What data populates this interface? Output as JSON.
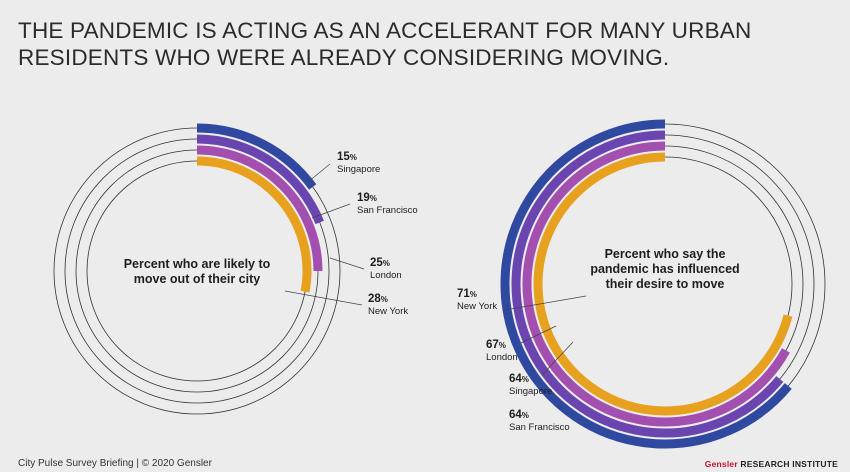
{
  "title": {
    "line1": "THE PANDEMIC IS ACTING AS AN ACCELERANT FOR MANY URBAN",
    "line2": "RESIDENTS WHO WERE ALREADY CONSIDERING MOVING."
  },
  "footer": {
    "left": "City Pulse Survey Briefing  |  © 2020 Gensler",
    "brand": "Gensler",
    "institute": "RESEARCH INSTITUTE"
  },
  "colors": {
    "blue": "#2f49a0",
    "purple_dark": "#6a45b0",
    "purple_light": "#a24fb0",
    "orange": "#e8a11e",
    "track": "#333333"
  },
  "chart_data": [
    {
      "type": "radial-bar",
      "center_label": [
        "Percent who are likely to",
        "move out of their city"
      ],
      "series": [
        {
          "name": "Singapore",
          "value": 15,
          "label": "15%",
          "color": "#2f49a0"
        },
        {
          "name": "San Francisco",
          "value": 19,
          "label": "19%",
          "color": "#6a45b0"
        },
        {
          "name": "London",
          "value": 25,
          "label": "25%",
          "color": "#a24fb0"
        },
        {
          "name": "New York",
          "value": 28,
          "label": "28%",
          "color": "#e8a11e"
        }
      ]
    },
    {
      "type": "radial-bar",
      "center_label": [
        "Percent who say the",
        "pandemic has influenced",
        "their desire to move"
      ],
      "series": [
        {
          "name": "San Francisco",
          "value": 64,
          "label": "64%",
          "color": "#2f49a0"
        },
        {
          "name": "Singapore",
          "value": 64,
          "label": "64%",
          "color": "#6a45b0"
        },
        {
          "name": "London",
          "value": 67,
          "label": "67%",
          "color": "#a24fb0"
        },
        {
          "name": "New York",
          "value": 71,
          "label": "71%",
          "color": "#e8a11e"
        }
      ]
    }
  ]
}
